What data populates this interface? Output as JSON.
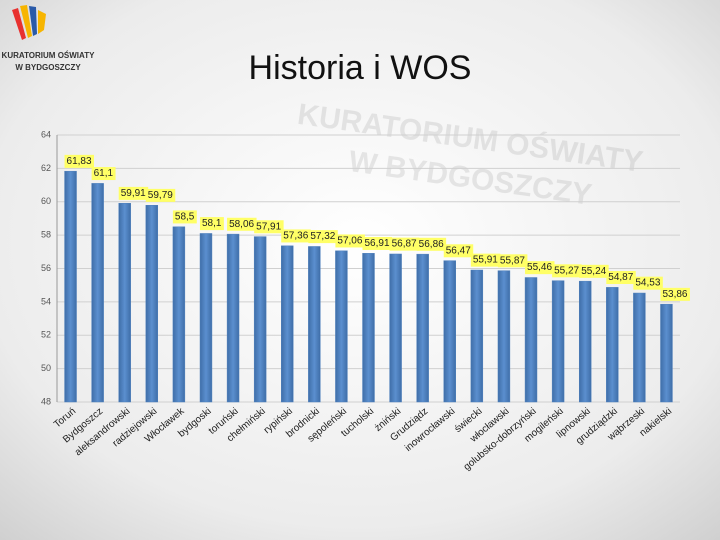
{
  "logo": {
    "line1": "KURATORIUM OŚWIATY",
    "line2": "W BYDGOSZCZY"
  },
  "chart_data": {
    "type": "bar",
    "title": "Historia i WOS",
    "categories": [
      "Toruń",
      "Bydgoszcz",
      "aleksandrowski",
      "radziejowski",
      "Włocławek",
      "bydgoski",
      "toruński",
      "chełmiński",
      "rypiński",
      "brodnicki",
      "sępoleński",
      "tucholski",
      "żniński",
      "Grudziądz",
      "inowrocławski",
      "świecki",
      "włocławski",
      "golubsko-dobrzyński",
      "mogileński",
      "lipnowski",
      "grudziądzki",
      "wąbrzeski",
      "nakielski"
    ],
    "values": [
      61.83,
      61.1,
      59.91,
      59.79,
      58.5,
      58.1,
      58.06,
      57.91,
      57.36,
      57.32,
      57.06,
      56.91,
      56.87,
      56.86,
      56.47,
      55.91,
      55.87,
      55.46,
      55.27,
      55.24,
      54.87,
      54.53,
      53.86
    ],
    "value_labels": [
      "61,83",
      "61,1",
      "59,91",
      "59,79",
      "58,5",
      "58,1",
      "58,06",
      "57,91",
      "57,36",
      "57,32",
      "57,06",
      "56,91",
      "56,87",
      "56,86",
      "56,47",
      "55,91",
      "55,87",
      "55,46",
      "55,27",
      "55,24",
      "54,87",
      "54,53",
      "53,86"
    ],
    "color": "#4f81bd",
    "ylim": [
      48,
      64
    ],
    "yticks": [
      48,
      50,
      52,
      54,
      56,
      58,
      60,
      62,
      64
    ],
    "grid": true
  }
}
